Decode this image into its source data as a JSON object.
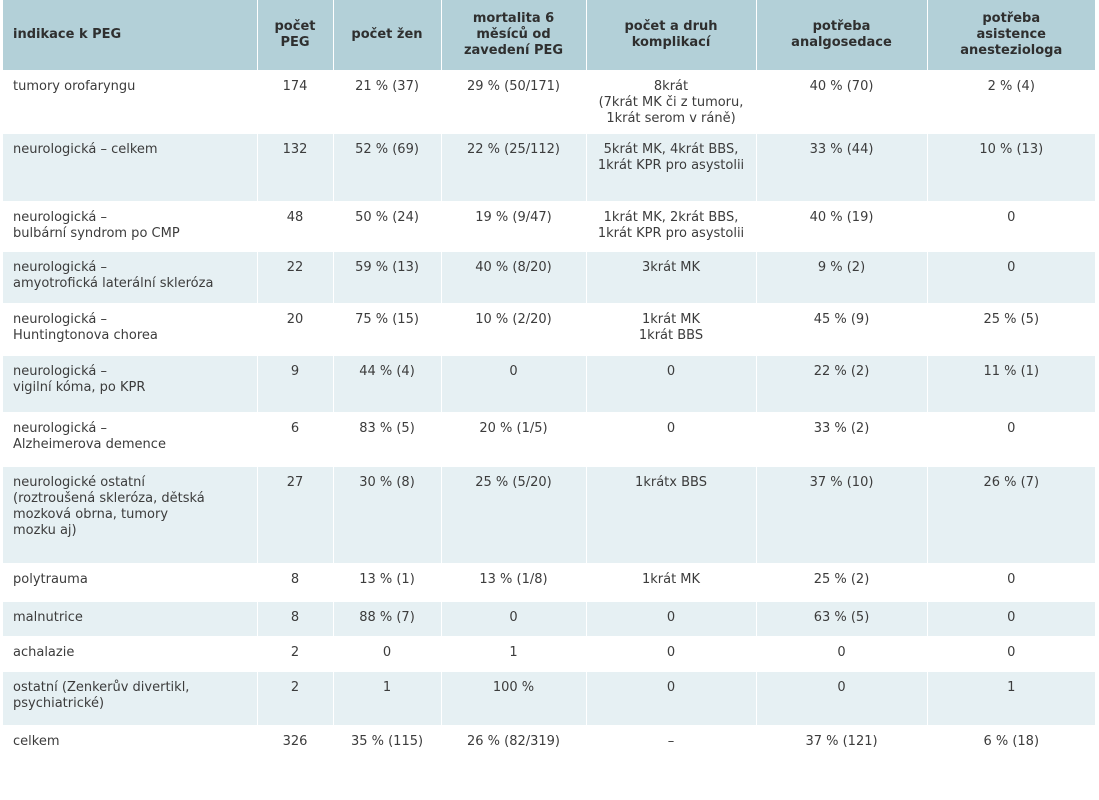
{
  "table": {
    "headers": [
      "indikace k PEG",
      "počet\nPEG",
      "počet žen",
      "mortalita 6\nměsíců od\nzavedení PEG",
      "počet a druh\nkomplikací",
      "potřeba\nanalgosedace",
      "potřeba\nasistence\nanesteziologa"
    ],
    "rows": [
      [
        "tumory orofaryngu",
        "174",
        "21 % (37)",
        "29 % (50/171)",
        "8krát\n(7krát MK či z tumoru,\n1krát serom v ráně)",
        "40 % (70)",
        "2 % (4)"
      ],
      [
        "neurologická – celkem",
        "132",
        "52 % (69)",
        "22 % (25/112)",
        "5krát MK, 4krát BBS,\n1krát KPR pro asystolii",
        "33 % (44)",
        "10 % (13)"
      ],
      [
        "neurologická –\nbulbární syndrom po CMP",
        "48",
        "50 % (24)",
        "19 % (9/47)",
        "1krát MK, 2krát BBS,\n1krát KPR pro asystolii",
        "40 % (19)",
        "0"
      ],
      [
        "neurologická –\namyotrofická laterální skleróza",
        "22",
        "59 % (13)",
        "40 % (8/20)",
        "3krát MK",
        "9 % (2)",
        "0"
      ],
      [
        "neurologická –\nHuntingtonova chorea",
        "20",
        "75 % (15)",
        "10 % (2/20)",
        "1krát MK\n1krát BBS",
        "45 % (9)",
        "25 % (5)"
      ],
      [
        "neurologická –\nvigilní kóma, po KPR",
        "9",
        "44 % (4)",
        "0",
        "0",
        "22 % (2)",
        "11 % (1)"
      ],
      [
        "neurologická –\nAlzheimerova demence",
        "6",
        "83 % (5)",
        "20 % (1/5)",
        "0",
        "33 % (2)",
        "0"
      ],
      [
        "neurologické ostatní\n(roztroušená skleróza, dětská\nmozková obrna, tumory\nmozku aj)",
        "27",
        "30 % (8)",
        "25 % (5/20)",
        "1krátx BBS",
        "37 % (10)",
        "26 % (7)"
      ],
      [
        "polytrauma",
        "8",
        "13 % (1)",
        "13 % (1/8)",
        "1krát MK",
        "25 % (2)",
        "0"
      ],
      [
        "malnutrice",
        "8",
        "88 % (7)",
        "0",
        "0",
        "63 % (5)",
        "0"
      ],
      [
        "achalazie",
        "2",
        "0",
        "1",
        "0",
        "0",
        "0"
      ],
      [
        "ostatní (Zenkerův divertikl,\npsychiatrické)",
        "2",
        "1",
        "100 %",
        "0",
        "0",
        "1"
      ],
      [
        "celkem",
        "326",
        "35 % (115)",
        "26 % (82/319)",
        "–",
        "37 % (121)",
        "6 % (18)"
      ]
    ]
  },
  "colors": {
    "header_bg": "#b3d0d8",
    "stripe_bg": "#e6f0f3",
    "row_bg": "#ffffff",
    "text": "#3c3c3c"
  }
}
